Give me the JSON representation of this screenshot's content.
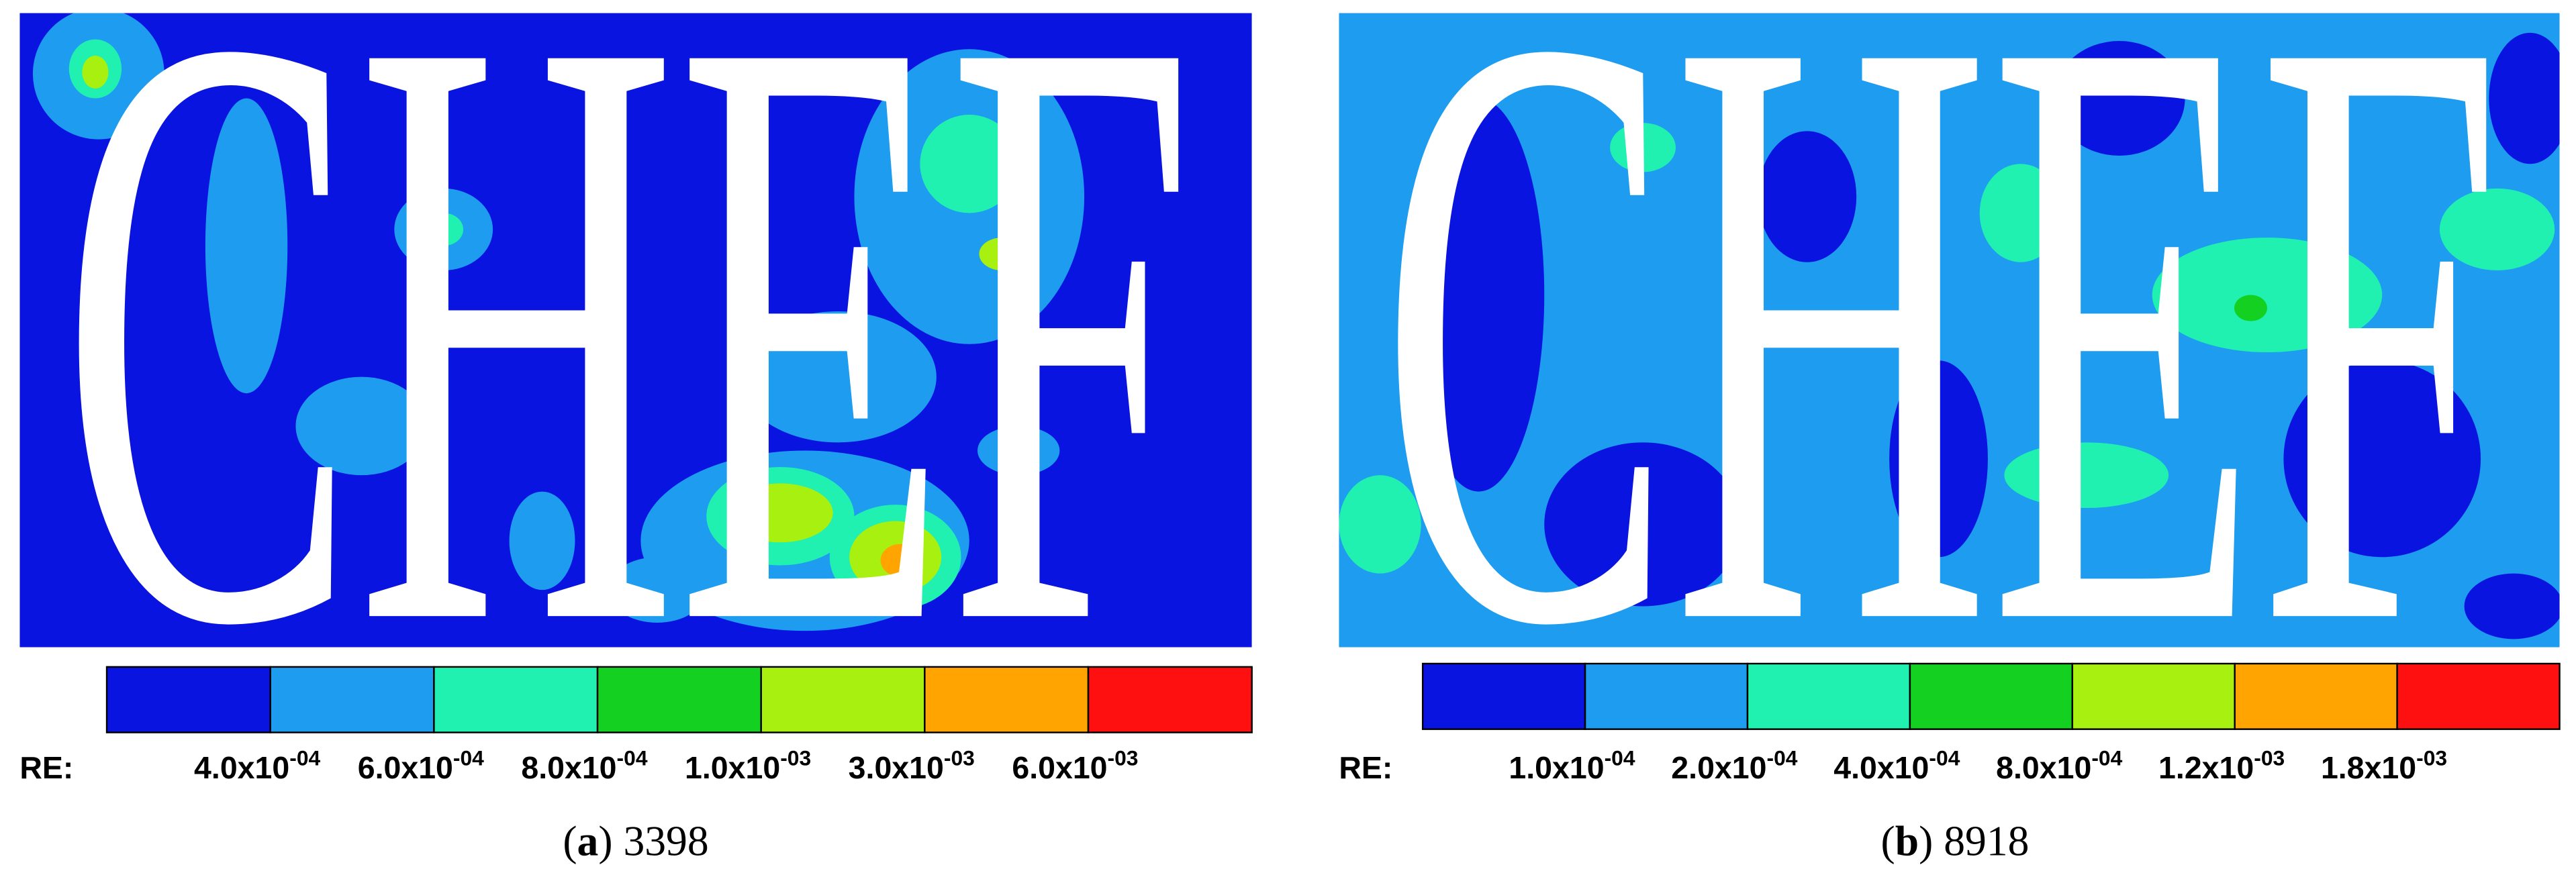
{
  "panels": [
    {
      "shape_text": "CHEF",
      "colorbar": {
        "label": "RE:",
        "colors": [
          "#0a14e0",
          "#1e9cf0",
          "#20f0b0",
          "#14d020",
          "#a8f010",
          "#ffa400",
          "#ff1010"
        ],
        "ticks": [
          {
            "base": "4.0x10",
            "exponent": "-04"
          },
          {
            "base": "6.0x10",
            "exponent": "-04"
          },
          {
            "base": "8.0x10",
            "exponent": "-04"
          },
          {
            "base": "1.0x10",
            "exponent": "-03"
          },
          {
            "base": "3.0x10",
            "exponent": "-03"
          },
          {
            "base": "6.0x10",
            "exponent": "-03"
          }
        ]
      },
      "caption": {
        "open": "(",
        "letter": "a",
        "rest": ") 3398"
      }
    },
    {
      "shape_text": "CHEF",
      "colorbar": {
        "label": "RE:",
        "colors": [
          "#0a14e0",
          "#1e9cf0",
          "#20f0b0",
          "#14d020",
          "#a8f010",
          "#ffa400",
          "#ff1010"
        ],
        "ticks": [
          {
            "base": "1.0x10",
            "exponent": "-04"
          },
          {
            "base": "2.0x10",
            "exponent": "-04"
          },
          {
            "base": "4.0x10",
            "exponent": "-04"
          },
          {
            "base": "8.0x10",
            "exponent": "-04"
          },
          {
            "base": "1.2x10",
            "exponent": "-03"
          },
          {
            "base": "1.8x10",
            "exponent": "-03"
          }
        ]
      },
      "caption": {
        "open": "(",
        "letter": "b",
        "rest": ") 8918"
      }
    }
  ]
}
